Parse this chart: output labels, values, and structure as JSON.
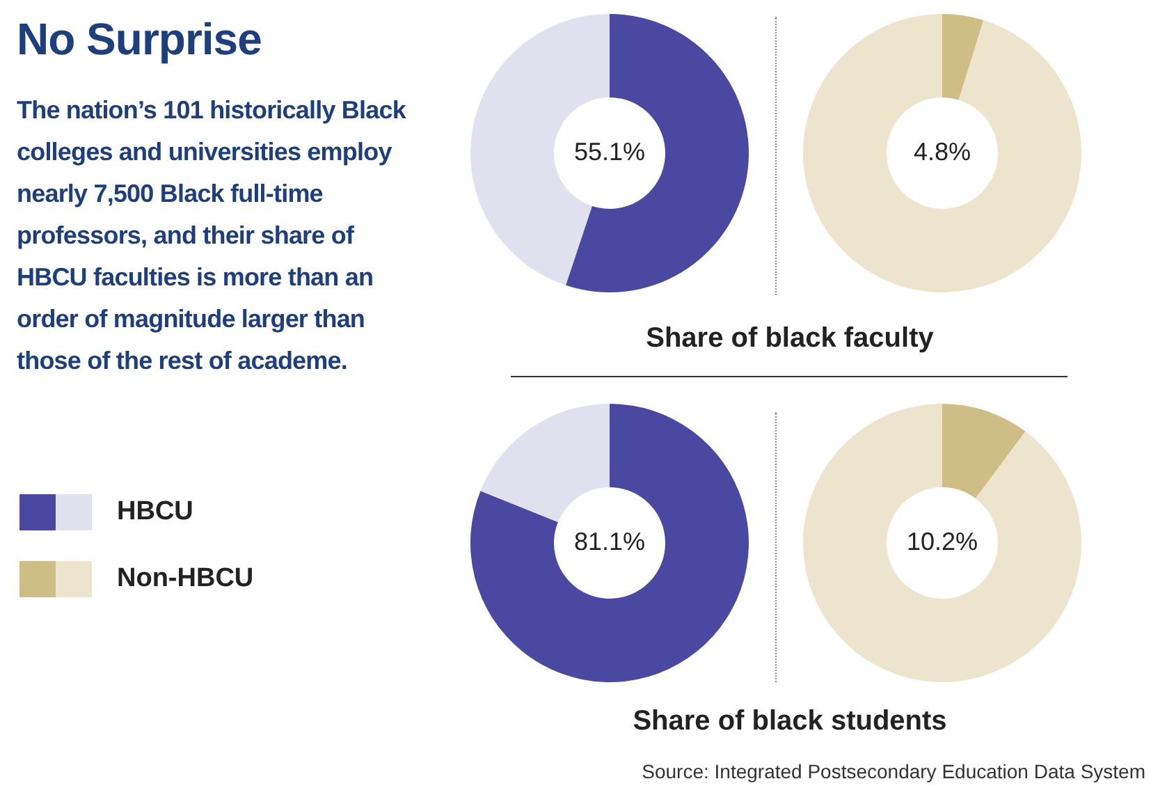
{
  "chart_data": [
    {
      "type": "other",
      "title": "No Surprise",
      "subtitle": "The nation’s 101 historically Black colleges and universities employ nearly 7,500 Black full-time professors, and their share of HBCU faculties is more than an order of magnitude larger than those of the rest of academe.",
      "annotations": [
        "Source: Integrated Postsecondary Education Data System"
      ]
    },
    {
      "type": "donut",
      "xlabel": "Share of black faculty",
      "legend": "left",
      "categories": [
        null,
        null
      ],
      "series": [
        {
          "name": "HBCU",
          "values": [
            55.1,
            44.9
          ],
          "colors": [
            "#4a48a0",
            "#e1e0ee"
          ],
          "value_labels": [
            "55.1%",
            null
          ]
        }
      ]
    },
    {
      "type": "donut",
      "legend": "left",
      "categories": [
        null,
        null
      ],
      "series": [
        {
          "name": "Non-HBCU",
          "values": [
            4.8,
            95.2
          ],
          "colors": [
            "#cfbd86",
            "#ede4cd"
          ],
          "value_labels": [
            "4.8%",
            null
          ]
        }
      ]
    },
    {
      "type": "donut",
      "xlabel": "Share of black students",
      "categories": [
        null,
        null
      ],
      "series": [
        {
          "values": [
            81.1,
            18.9
          ],
          "colors": [
            "#4a48a0",
            "#e1e0ee"
          ],
          "value_labels": [
            "81.1%",
            null
          ]
        }
      ]
    },
    {
      "type": "donut",
      "categories": [
        null,
        null
      ],
      "series": [
        {
          "values": [
            10.2,
            89.8
          ],
          "colors": [
            "#cfbd86",
            "#ede4cd"
          ],
          "value_labels": [
            "10.2%",
            null
          ]
        }
      ]
    }
  ]
}
